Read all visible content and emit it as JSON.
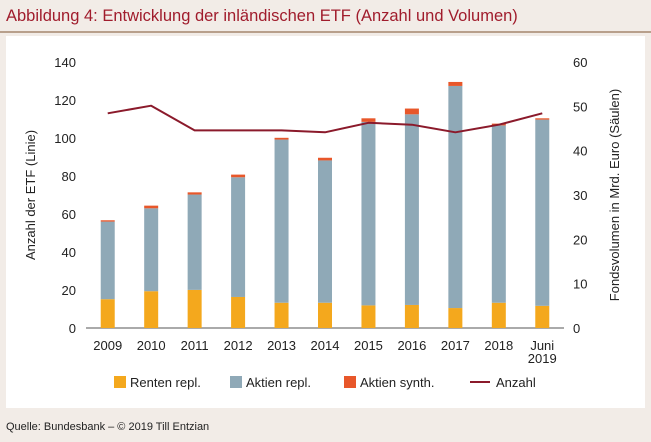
{
  "title": "Abbildung 4: Entwicklung der inländischen ETF (Anzahl und Volumen)",
  "source": "Quelle: Bundesbank – © 2019 Till Entzian",
  "chart_data": {
    "type": "bar",
    "stacked": true,
    "categories": [
      "2009",
      "2010",
      "2011",
      "2012",
      "2013",
      "2014",
      "2015",
      "2016",
      "2017",
      "2018",
      "Juni 2019"
    ],
    "category_lines": [
      [
        "2009"
      ],
      [
        "2010"
      ],
      [
        "2011"
      ],
      [
        "2012"
      ],
      [
        "2013"
      ],
      [
        "2014"
      ],
      [
        "2015"
      ],
      [
        "2016"
      ],
      [
        "2017"
      ],
      [
        "2018"
      ],
      [
        "Juni",
        "2019"
      ]
    ],
    "series": [
      {
        "name": "Renten repl.",
        "type": "bar",
        "axis": "right",
        "color": "#f4a81d",
        "values": [
          6.5,
          8.3,
          8.6,
          7.0,
          5.7,
          5.7,
          5.1,
          5.2,
          4.5,
          5.7,
          5.0
        ]
      },
      {
        "name": "Aktien repl.",
        "type": "bar",
        "axis": "right",
        "color": "#8fa9b7",
        "values": [
          17.5,
          18.7,
          21.5,
          27.0,
          36.8,
          32.1,
          41.4,
          43.0,
          50.1,
          40.0,
          42.0
        ]
      },
      {
        "name": "Aktien synth.",
        "type": "bar",
        "axis": "right",
        "color": "#e8572a",
        "values": [
          0.3,
          0.6,
          0.5,
          0.6,
          0.4,
          0.6,
          0.8,
          1.3,
          0.9,
          0.4,
          0.3
        ]
      },
      {
        "name": "Anzahl",
        "type": "line",
        "axis": "left",
        "color": "#8b1a2b",
        "values": [
          113,
          117,
          104,
          104,
          104,
          103,
          108,
          107,
          103,
          107,
          113
        ]
      }
    ],
    "ylabel_left": "Anzahl der ETF (Linie)",
    "ylabel_right": "Fondsvolumen in Mrd. Euro (Säulen)",
    "ylim_left": [
      0,
      140
    ],
    "ylim_right": [
      0,
      60
    ],
    "yticks_left": [
      "0",
      "20",
      "40",
      "60",
      "80",
      "100",
      "120",
      "140"
    ],
    "yticks_right": [
      "0",
      "10",
      "20",
      "30",
      "40",
      "50",
      "60"
    ],
    "grid": false,
    "legend_position": "bottom"
  }
}
